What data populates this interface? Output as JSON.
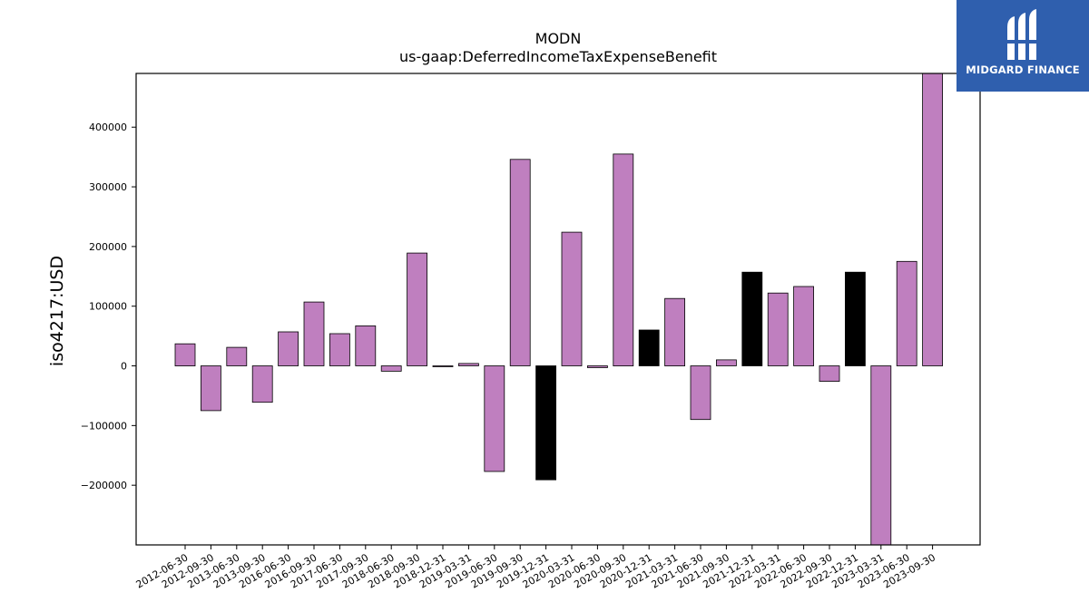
{
  "chart_data": {
    "type": "bar",
    "title": "MODN",
    "subtitle": "us-gaap:DeferredIncomeTaxExpenseBenefit",
    "xlabel": "",
    "ylabel": "iso4217:USD",
    "ylim": [
      -300000,
      490000
    ],
    "yticks": [
      -200000,
      -100000,
      0,
      100000,
      200000,
      300000,
      400000
    ],
    "ytick_labels": [
      "−200000",
      "−100000",
      "0",
      "100000",
      "200000",
      "300000",
      "400000"
    ],
    "categories": [
      "2012-06-30",
      "2012-09-30",
      "2013-06-30",
      "2013-09-30",
      "2016-06-30",
      "2016-09-30",
      "2017-06-30",
      "2017-09-30",
      "2018-06-30",
      "2018-09-30",
      "2018-12-31",
      "2019-03-31",
      "2019-06-30",
      "2019-09-30",
      "2019-12-31",
      "2020-03-31",
      "2020-06-30",
      "2020-09-30",
      "2020-12-31",
      "2021-03-31",
      "2021-06-30",
      "2021-09-30",
      "2021-12-31",
      "2022-03-31",
      "2022-06-30",
      "2022-09-30",
      "2022-12-31",
      "2023-03-31",
      "2023-06-30",
      "2023-09-30"
    ],
    "values": [
      37000,
      -75000,
      31000,
      -61000,
      57000,
      107000,
      54000,
      67000,
      -9000,
      189000,
      -1500,
      4000,
      -177000,
      346000,
      -191000,
      224000,
      -3000,
      355000,
      60000,
      113000,
      -90000,
      10000,
      157000,
      122000,
      133000,
      -26000,
      157000,
      -300000,
      175000,
      490000
    ],
    "bar_colors": [
      "#bf7fbf",
      "#bf7fbf",
      "#bf7fbf",
      "#bf7fbf",
      "#bf7fbf",
      "#bf7fbf",
      "#bf7fbf",
      "#bf7fbf",
      "#bf7fbf",
      "#bf7fbf",
      "#bf7fbf",
      "#bf7fbf",
      "#bf7fbf",
      "#bf7fbf",
      "#000000",
      "#bf7fbf",
      "#bf7fbf",
      "#bf7fbf",
      "#000000",
      "#bf7fbf",
      "#bf7fbf",
      "#bf7fbf",
      "#000000",
      "#bf7fbf",
      "#bf7fbf",
      "#bf7fbf",
      "#000000",
      "#bf7fbf",
      "#bf7fbf",
      "#bf7fbf"
    ],
    "grid": false,
    "legend": "none"
  },
  "logo": {
    "text": "MIDGARD FINANCE",
    "background": "#2f5fae"
  }
}
